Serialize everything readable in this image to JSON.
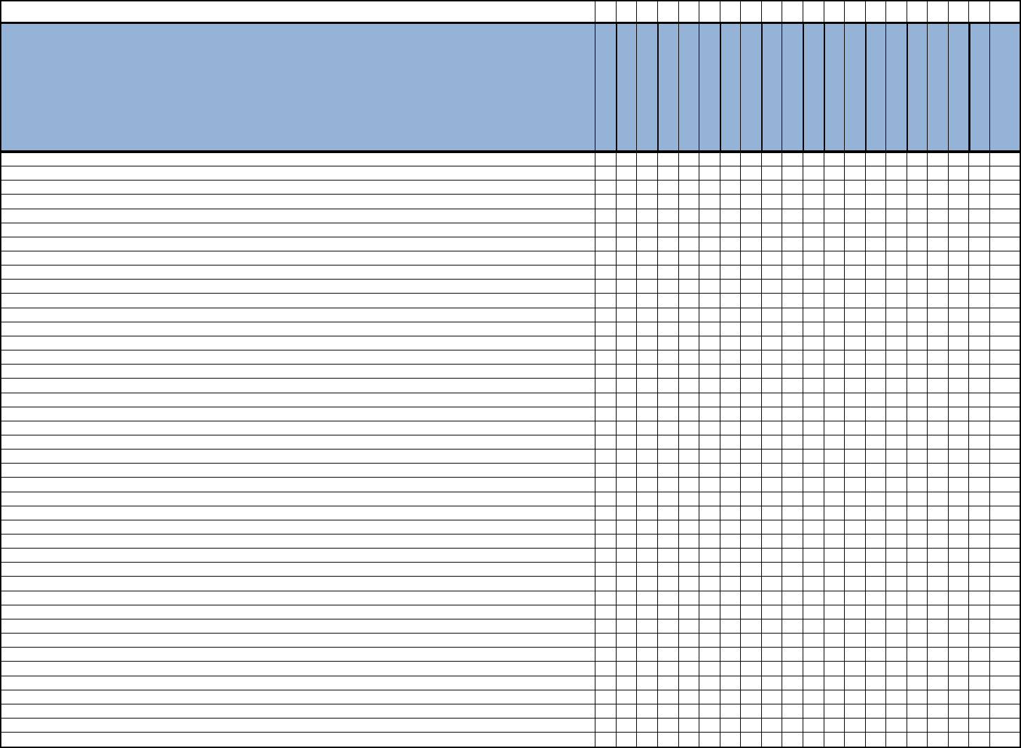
{
  "sheet": {
    "header_fill_color": "#95B3D7",
    "cell_fill_color": "#FFFFFF",
    "border_color": "#000000",
    "cells": []
  }
}
